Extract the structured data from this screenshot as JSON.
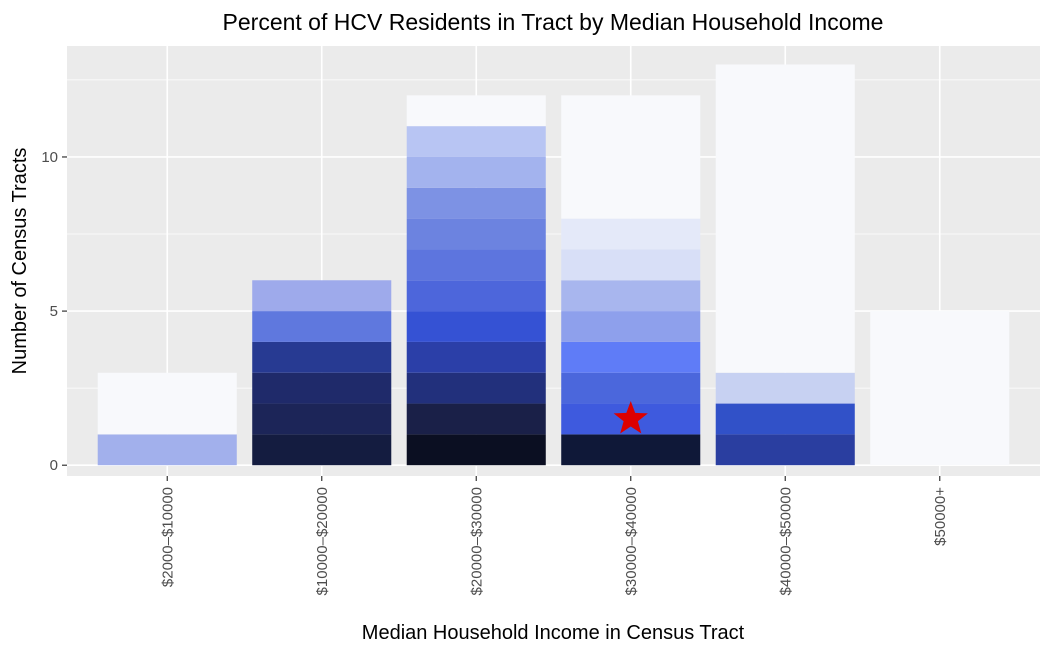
{
  "chart_data": {
    "type": "bar",
    "stacked": true,
    "title": "Percent of HCV Residents in Tract by Median Household Income",
    "xlabel": "Median Household Income in Census Tract",
    "ylabel": "Number of Census Tracts",
    "categories": [
      "$2000–$10000",
      "$10000–$20000",
      "$20000–$30000",
      "$30000–$40000",
      "$40000–$50000",
      "$50000+"
    ],
    "ylim": [
      -0.35,
      13.6
    ],
    "yticks": [
      0,
      5,
      10
    ],
    "grid": true,
    "legend": "none",
    "bars": [
      {
        "category": "$2000–$10000",
        "segments": [
          {
            "count": 1,
            "color": "#a2b0ec"
          },
          {
            "count": 2,
            "color": "#f8f9fc"
          }
        ]
      },
      {
        "category": "$10000–$20000",
        "segments": [
          {
            "count": 1,
            "color": "#141c40"
          },
          {
            "count": 1,
            "color": "#1c2558"
          },
          {
            "count": 1,
            "color": "#1f2a6a"
          },
          {
            "count": 1,
            "color": "#273a92"
          },
          {
            "count": 1,
            "color": "#5f78de"
          },
          {
            "count": 1,
            "color": "#9eaaeb"
          }
        ]
      },
      {
        "category": "$20000–$30000",
        "segments": [
          {
            "count": 1,
            "color": "#0b0f22"
          },
          {
            "count": 1,
            "color": "#1a2048"
          },
          {
            "count": 1,
            "color": "#22307c"
          },
          {
            "count": 1,
            "color": "#2b3fa8"
          },
          {
            "count": 1,
            "color": "#3552d4"
          },
          {
            "count": 1,
            "color": "#4d66db"
          },
          {
            "count": 1,
            "color": "#5d75de"
          },
          {
            "count": 1,
            "color": "#6c83e0"
          },
          {
            "count": 1,
            "color": "#7d92e4"
          },
          {
            "count": 1,
            "color": "#a3b3ee"
          },
          {
            "count": 1,
            "color": "#b8c5f3"
          },
          {
            "count": 1,
            "color": "#f8f9fc"
          }
        ]
      },
      {
        "category": "$30000–$40000",
        "segments": [
          {
            "count": 1,
            "color": "#0f1838"
          },
          {
            "count": 1,
            "color": "#3e5ade"
          },
          {
            "count": 1,
            "color": "#4b67dc"
          },
          {
            "count": 1,
            "color": "#5f7cf7"
          },
          {
            "count": 1,
            "color": "#8ea0ec"
          },
          {
            "count": 1,
            "color": "#a8b6ee"
          },
          {
            "count": 1,
            "color": "#d8dff7"
          },
          {
            "count": 1,
            "color": "#e4e9f9"
          },
          {
            "count": 4,
            "color": "#f8f9fc"
          }
        ]
      },
      {
        "category": "$40000–$50000",
        "segments": [
          {
            "count": 1,
            "color": "#2a3ea0"
          },
          {
            "count": 1,
            "color": "#3151c8"
          },
          {
            "count": 1,
            "color": "#c7d1f2"
          },
          {
            "count": 10,
            "color": "#f8f9fc"
          }
        ]
      },
      {
        "category": "$50000+",
        "segments": [
          {
            "count": 5,
            "color": "#f8f9fc"
          }
        ]
      }
    ],
    "annotations": [
      {
        "type": "star",
        "category": "$30000–$40000",
        "y": 1.5,
        "color": "#dd0000"
      }
    ],
    "colors": {
      "panel_background": "#ebebeb",
      "grid_line": "#ffffff",
      "axis_tick": "#333333"
    }
  }
}
